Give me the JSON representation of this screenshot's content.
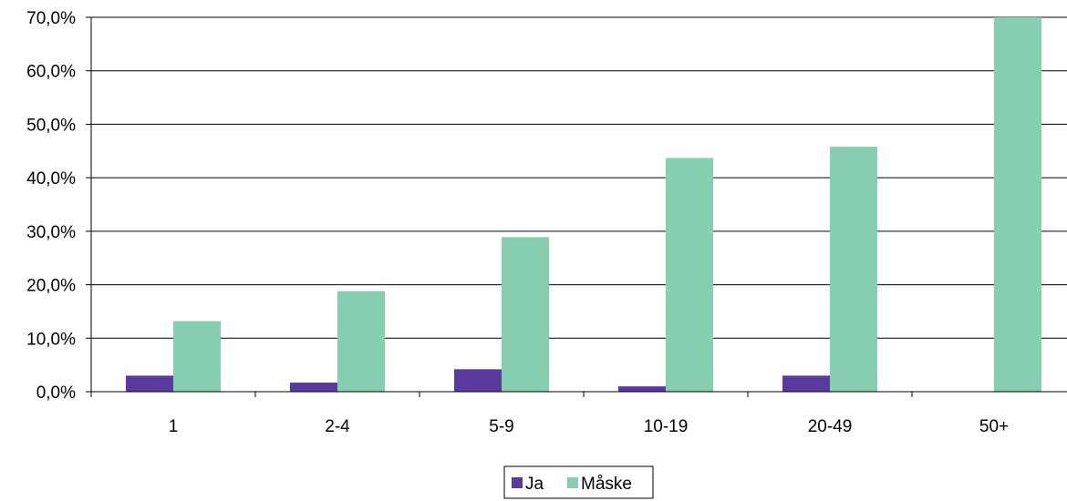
{
  "chart_data": {
    "type": "bar",
    "title": "",
    "xlabel": "",
    "ylabel": "",
    "categories": [
      "1",
      "2-4",
      "5-9",
      "10-19",
      "20-49",
      "50+"
    ],
    "series": [
      {
        "name": "Ja",
        "color": "#5b3a9e",
        "values": [
          3.0,
          1.7,
          4.2,
          1.0,
          3.0,
          0.0
        ]
      },
      {
        "name": "Måske",
        "color": "#87cdb0",
        "values": [
          13.2,
          18.8,
          28.9,
          43.7,
          45.8,
          70.0
        ]
      }
    ],
    "ylim": [
      0,
      70
    ],
    "yticks": [
      0,
      10,
      20,
      30,
      40,
      50,
      60,
      70
    ],
    "ytick_labels": [
      "0,0%",
      "10,0%",
      "20,0%",
      "30,0%",
      "40,0%",
      "50,0%",
      "60,0%",
      "70,0%"
    ],
    "grid": true,
    "legend_position": "bottom-center"
  }
}
